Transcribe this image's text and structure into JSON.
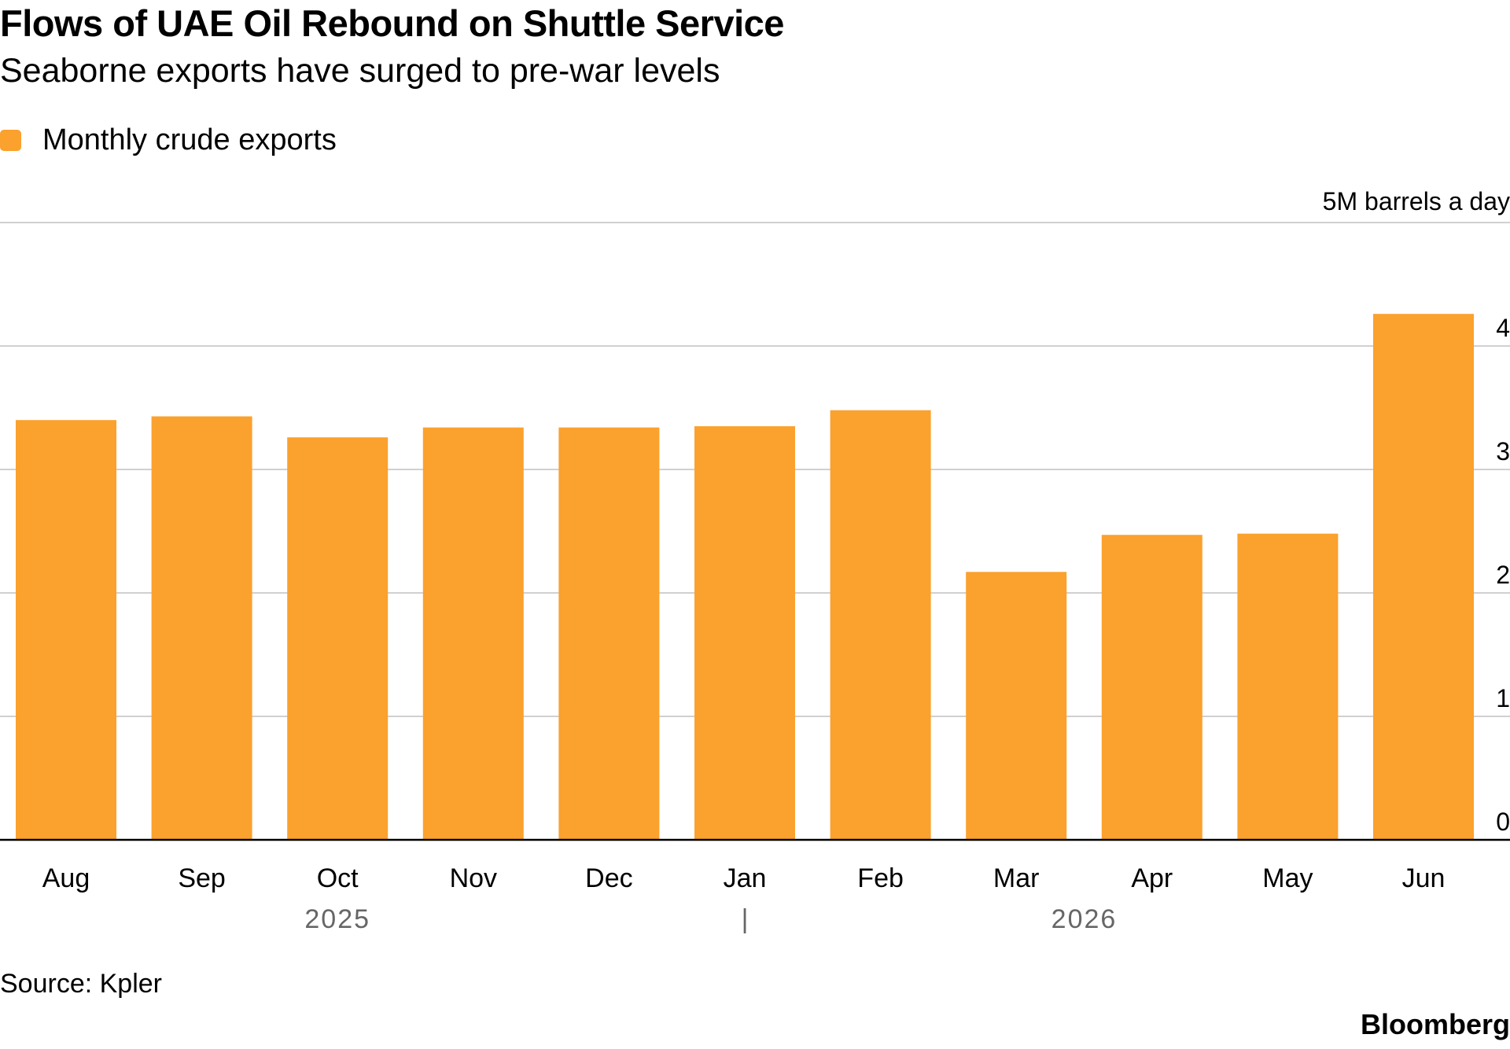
{
  "title": "Flows of UAE Oil Rebound on Shuttle Service",
  "subtitle": "Seaborne exports have surged to pre-war levels",
  "source": "Source: Kpler",
  "brand": "Bloomberg",
  "colors": {
    "bar": "#FBA12E",
    "grid": "#D0D0D0",
    "axis": "#000000",
    "year_label": "#666666"
  },
  "chart_data": {
    "type": "bar",
    "categories": [
      "Aug",
      "Sep",
      "Oct",
      "Nov",
      "Dec",
      "Jan",
      "Feb",
      "Mar",
      "Apr",
      "May",
      "Jun"
    ],
    "year_labels": [
      {
        "label": "2025",
        "months": [
          "Aug",
          "Sep",
          "Oct",
          "Nov",
          "Dec"
        ]
      },
      {
        "label": "2026",
        "months": [
          "Jan",
          "Feb",
          "Mar",
          "Apr",
          "May",
          "Jun"
        ]
      }
    ],
    "year_separator_glyph": "|",
    "series": [
      {
        "name": "Monthly crude exports",
        "color": "#FBA12E",
        "values": [
          3.4,
          3.43,
          3.26,
          3.34,
          3.34,
          3.35,
          3.48,
          2.17,
          2.47,
          2.48,
          4.26
        ]
      }
    ],
    "y_ticks": [
      0,
      1,
      2,
      3,
      4
    ],
    "top_tick_label": "5M barrels a day",
    "ylim": [
      0,
      5
    ],
    "y_axis_position": "right",
    "grid": true,
    "legend_position": "top-left"
  }
}
